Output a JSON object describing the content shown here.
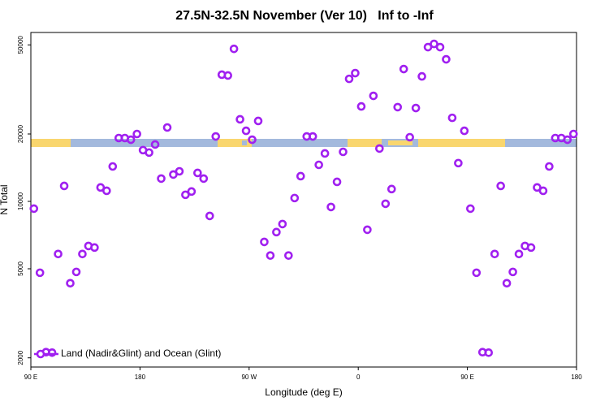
{
  "chart_data": {
    "type": "scatter",
    "title": "27.5N-32.5N November (Ver 10)   Inf to -Inf",
    "xlabel": "Longitude (deg E)",
    "ylabel": "N Total",
    "log_y": true,
    "xlim": [
      90,
      540
    ],
    "ylim": [
      1820,
      56800
    ],
    "xticks": [
      {
        "value": 90,
        "label": "90 E"
      },
      180,
      {
        "value": 270,
        "label": "90 W"
      },
      {
        "value": 360,
        "label": "0"
      },
      {
        "value": 450,
        "label": "90 E"
      },
      {
        "value": 540,
        "label": "180"
      }
    ],
    "yticks": [
      2000,
      5000,
      10000,
      20000,
      50000
    ],
    "legend": "bottom-left",
    "series": [
      {
        "name": "Land (Nadir&Glint) and Ocean (Glint)",
        "color": "#a020f0",
        "x": [
          92.5,
          97.5,
          102.5,
          107.5,
          112.5,
          117.5,
          122.5,
          127.5,
          132.5,
          137.5,
          142.5,
          147.5,
          152.5,
          157.5,
          162.5,
          167.5,
          172.5,
          177.5,
          182.5,
          187.5,
          192.5,
          197.5,
          202.5,
          207.5,
          212.5,
          217.5,
          222.5,
          227.5,
          232.5,
          237.5,
          242.5,
          247.5,
          252.5,
          257.5,
          262.5,
          267.5,
          272.5,
          277.5,
          282.5,
          287.5,
          292.5,
          297.5,
          302.5,
          307.5,
          312.5,
          317.5,
          322.5,
          327.5,
          332.5,
          337.5,
          342.5,
          347.5,
          352.5,
          357.5,
          362.5,
          367.5,
          372.5,
          377.5,
          382.5,
          387.5,
          392.5,
          397.5,
          402.5,
          407.5,
          412.5,
          417.5,
          422.5,
          427.5,
          432.5,
          437.5,
          442.5,
          447.5,
          452.5,
          457.5,
          462.5,
          467.5,
          472.5,
          477.5,
          482.5,
          487.5,
          492.5,
          497.5,
          502.5,
          507.5,
          512.5,
          517.5,
          522.5,
          527.5,
          532.5,
          537.5
        ],
        "values": [
          9280,
          4800,
          2120,
          2110,
          5820,
          11720,
          4310,
          4840,
          5820,
          6320,
          6220,
          11540,
          11150,
          14320,
          19180,
          19180,
          18860,
          20000,
          16940,
          16520,
          17950,
          12640,
          21380,
          13180,
          13620,
          10700,
          11070,
          13400,
          12640,
          8610,
          19500,
          36800,
          36500,
          48000,
          23250,
          20660,
          18860,
          22860,
          6590,
          5730,
          7290,
          7920,
          5730,
          10350,
          12960,
          19500,
          19500,
          14560,
          16370,
          9440,
          12220,
          16640,
          35250,
          37400,
          26550,
          7470,
          29600,
          17220,
          9760,
          11350,
          26360,
          39000,
          19340,
          26120,
          36150,
          48850,
          50500,
          48850,
          43100,
          23610,
          14820,
          20660,
          9280,
          4800,
          2120,
          2110,
          5820,
          11720,
          4310,
          4840,
          5820,
          6320,
          6220,
          11540,
          11150,
          14320,
          19180,
          19180,
          18860,
          20000
        ]
      }
    ]
  }
}
